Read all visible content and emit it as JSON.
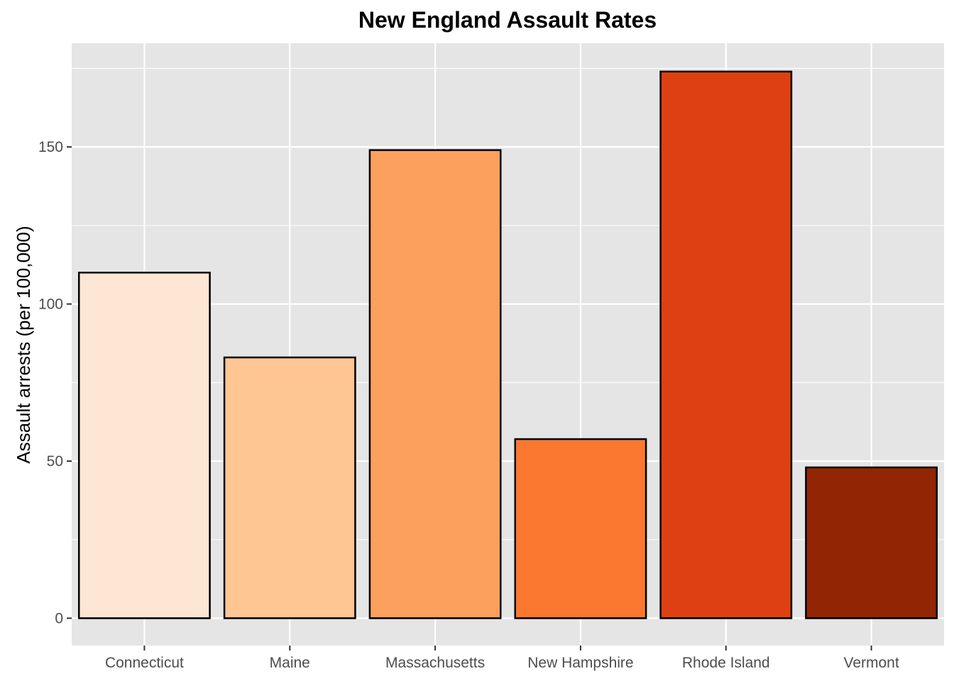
{
  "chart_data": {
    "type": "bar",
    "title": "New England Assault Rates",
    "xlabel": "",
    "ylabel": "Assault arrests (per 100,000)",
    "categories": [
      "Connecticut",
      "Maine",
      "Massachusetts",
      "New Hampshire",
      "Rhode Island",
      "Vermont"
    ],
    "values": [
      110.0,
      83.0,
      149.0,
      57.0,
      174.0,
      48.0
    ],
    "colors": [
      "#fee6d5",
      "#fdc692",
      "#fba05d",
      "#fa7830",
      "#df4011",
      "#922604"
    ],
    "ylim": [
      -8.7,
      183.0
    ],
    "yticks": [
      0,
      50,
      100,
      150
    ],
    "yticklabels": [
      "0",
      "50",
      "100",
      "150"
    ],
    "panel_background": "#e5e5e5",
    "grid": true,
    "bar_outline": "#000000"
  }
}
